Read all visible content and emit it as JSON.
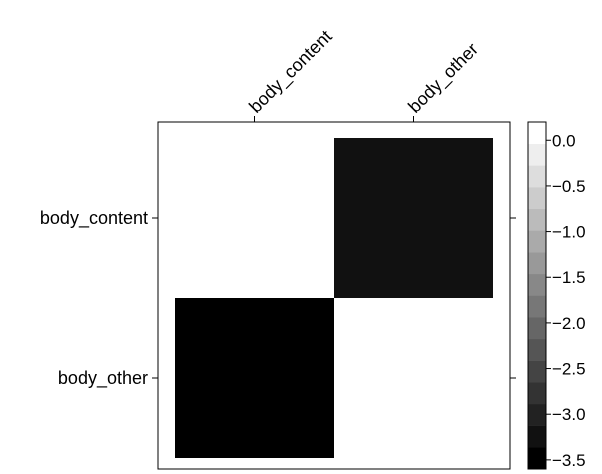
{
  "chart_data": {
    "type": "heatmap",
    "title": "",
    "x_categories": [
      "body_content",
      "body_other"
    ],
    "y_categories": [
      "body_content",
      "body_other"
    ],
    "values": [
      [
        0.0,
        -3.3
      ],
      [
        -3.6,
        0.2
      ]
    ],
    "colorbar": {
      "range": [
        -3.6,
        0.2
      ],
      "ticks": [
        0.0,
        -0.5,
        -1.0,
        -1.5,
        -2.0,
        -2.5,
        -3.0,
        -3.5
      ],
      "tick_labels": [
        "0.0",
        "−0.5",
        "−1.0",
        "−1.5",
        "−2.0",
        "−2.5",
        "−3.0",
        "−3.5"
      ],
      "levels": 16,
      "colormap": "grayscale"
    },
    "grid": false,
    "legend_position": "right"
  }
}
